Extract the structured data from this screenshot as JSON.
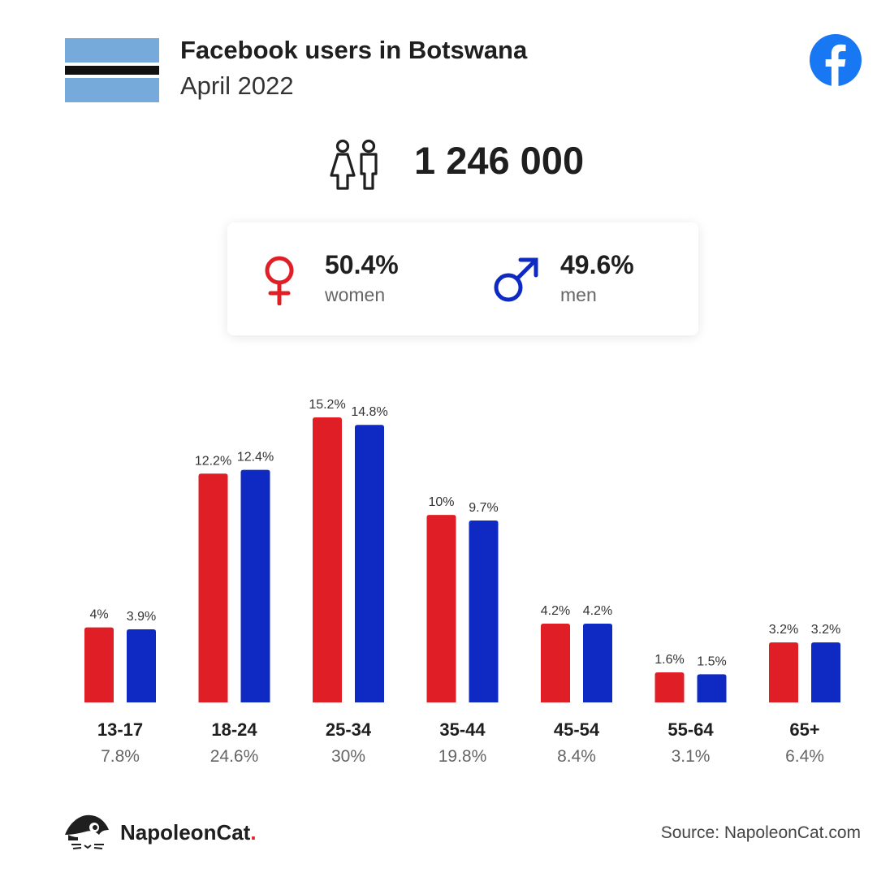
{
  "header": {
    "title": "Facebook users in Botswana",
    "subtitle": "April 2022"
  },
  "icons": {
    "flag": "botswana-flag",
    "facebook": "facebook-logo-icon",
    "people": "people-icon",
    "female": "female-symbol-icon",
    "male": "male-symbol-icon"
  },
  "total_users": "1 246 000",
  "gender": {
    "women": {
      "pct": "50.4%",
      "label": "women"
    },
    "men": {
      "pct": "49.6%",
      "label": "men"
    }
  },
  "colors": {
    "women": "#e01e26",
    "men": "#0f2ac2",
    "flag_blue": "#75aadb",
    "facebook_blue": "#1877f2"
  },
  "chart_data": {
    "type": "bar",
    "categories": [
      "13-17",
      "18-24",
      "25-34",
      "35-44",
      "45-54",
      "55-64",
      "65+"
    ],
    "category_totals": [
      "7.8%",
      "24.6%",
      "30%",
      "19.8%",
      "8.4%",
      "3.1%",
      "6.4%"
    ],
    "series": [
      {
        "values": [
          4,
          12.2,
          15.2,
          10,
          4.2,
          1.6,
          3.2
        ],
        "labels": [
          "4%",
          "12.2%",
          "15.2%",
          "10%",
          "4.2%",
          "1.6%",
          "3.2%"
        ]
      },
      {
        "values": [
          3.9,
          12.4,
          14.8,
          9.7,
          4.2,
          1.5,
          3.2
        ],
        "labels": [
          "3.9%",
          "12.4%",
          "14.8%",
          "9.7%",
          "4.2%",
          "1.5%",
          "3.2%"
        ]
      }
    ],
    "title": "",
    "xlabel": "",
    "ylabel": "",
    "ylim": [
      0,
      15.2
    ],
    "grid": false
  },
  "footer": {
    "brand": "NapoleonCat",
    "brand_dot": ".",
    "source": "Source: NapoleonCat.com"
  }
}
